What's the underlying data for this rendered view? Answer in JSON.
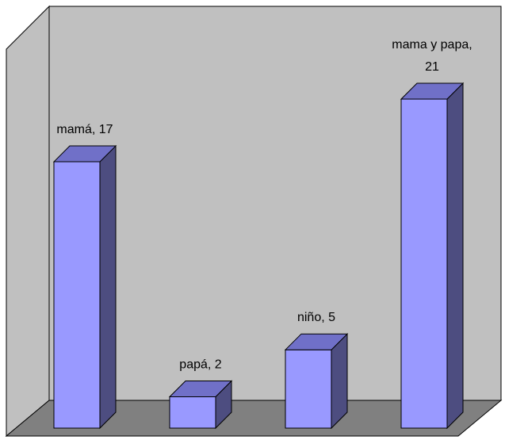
{
  "chart_data": {
    "type": "bar",
    "style": "3d-column",
    "categories": [
      "mamá",
      "papá",
      "niño",
      "mama y papa"
    ],
    "values": [
      17,
      2,
      5,
      21
    ],
    "data_labels": [
      [
        "mamá, 17"
      ],
      [
        "papá, 2"
      ],
      [
        "niño, 5"
      ],
      [
        "mama y papa,",
        "21"
      ]
    ],
    "title": "",
    "xlabel": "",
    "ylabel": "",
    "ylim": [
      0,
      21
    ],
    "grid": false,
    "legend": "none",
    "colors": {
      "bar_front": "#9999ff",
      "bar_side": "#4d4d80",
      "bar_top": "#7070c8",
      "back_wall": "#c0c0c0",
      "side_wall": "#c0c0c0",
      "floor": "#808080",
      "outline": "#000000"
    }
  }
}
